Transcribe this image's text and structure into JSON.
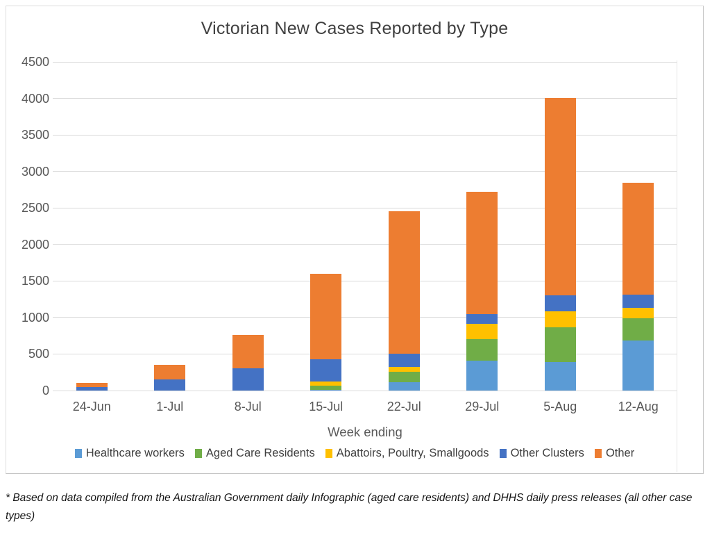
{
  "page": {
    "footnote": "* Based on data compiled from the Australian Government daily Infographic (aged care residents) and DHHS daily press releases (all other case types)"
  },
  "colors": {
    "title_text": "#404040",
    "axis_text": "#595959",
    "gridline": "#d9d9d9",
    "frame_border": "#dcdcdc"
  },
  "chart_data": {
    "type": "bar",
    "stacked": true,
    "title": "Victorian New Cases Reported by Type",
    "xlabel": "Week ending",
    "ylabel": "",
    "ylim": [
      0,
      4500
    ],
    "ytick_step": 500,
    "grid": true,
    "legend_position": "bottom",
    "categories": [
      "24-Jun",
      "1-Jul",
      "8-Jul",
      "15-Jul",
      "22-Jul",
      "29-Jul",
      "5-Aug",
      "12-Aug"
    ],
    "series": [
      {
        "name": "Healthcare workers",
        "color": "#5B9BD5",
        "values": [
          0,
          0,
          0,
          10,
          110,
          410,
          390,
          685
        ]
      },
      {
        "name": "Aged Care Residents",
        "color": "#70AD47",
        "values": [
          0,
          0,
          0,
          55,
          145,
          295,
          475,
          305
        ]
      },
      {
        "name": "Abattoirs, Poultry, Smallgoods",
        "color": "#FFC000",
        "values": [
          0,
          0,
          0,
          55,
          65,
          205,
          215,
          145
        ]
      },
      {
        "name": "Other Clusters",
        "color": "#4472C4",
        "values": [
          50,
          150,
          300,
          305,
          180,
          135,
          220,
          175
        ]
      },
      {
        "name": "Other",
        "color": "#ED7D31",
        "values": [
          55,
          200,
          460,
          1175,
          1955,
          1680,
          2710,
          1530
        ]
      }
    ],
    "totals": [
      105,
      350,
      760,
      1600,
      2455,
      2725,
      4010,
      2840
    ]
  }
}
